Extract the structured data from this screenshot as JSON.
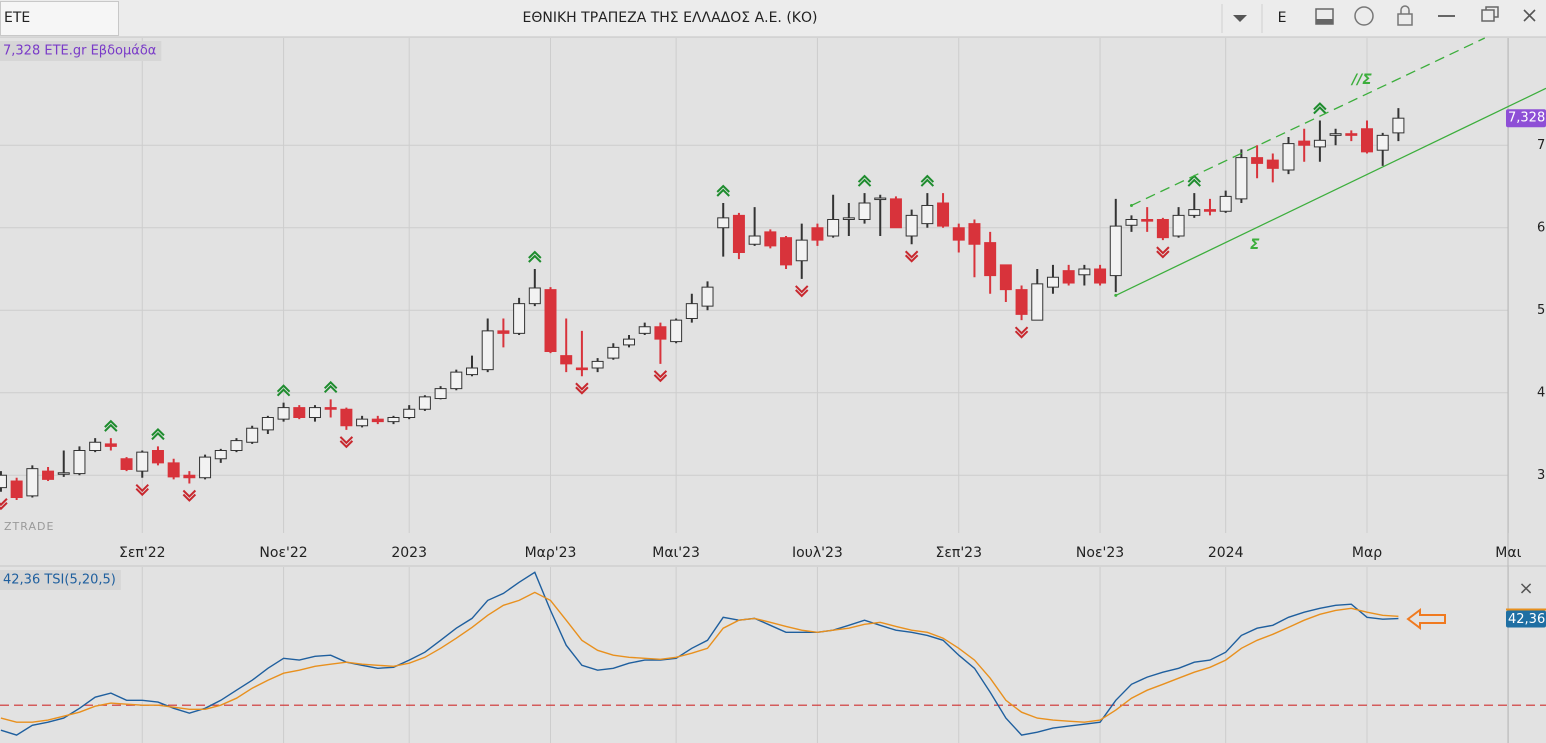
{
  "header": {
    "symbol": "ETE",
    "title": "ΕΘΝΙΚΗ ΤΡΑΠΕΖΑ ΤΗΣ ΕΛΛΑΔΟΣ Α.Ε. (ΚΟ)",
    "mode": "E"
  },
  "watermark": "ZTRADE",
  "panel_close": "×",
  "chart_data": [
    {
      "type": "candlestick",
      "legend": "7,328 ETE.gr Εβδομάδα",
      "last_value": {
        "value": 7.328,
        "label": "7,328"
      },
      "up_color": "#f2f2f2",
      "down_color": "#d8333b",
      "edge_color": "#333333",
      "xlim": [
        -0.06,
        98.4
      ],
      "xticks": [
        {
          "value": 9,
          "label": "Σεπ'22"
        },
        {
          "value": 18,
          "label": "Νοε'22"
        },
        {
          "value": 26,
          "label": "2023"
        },
        {
          "value": 35,
          "label": "Μαρ'23"
        },
        {
          "value": 43,
          "label": "Μαι'23"
        },
        {
          "value": 52,
          "label": "Ιουλ'23"
        },
        {
          "value": 61,
          "label": "Σεπ'23"
        },
        {
          "value": 70,
          "label": "Νοε'23"
        },
        {
          "value": 78,
          "label": "2024"
        },
        {
          "value": 87,
          "label": "Μαρ"
        },
        {
          "value": 96,
          "label": "Μαι"
        }
      ],
      "ylim": [
        2.3,
        8.3
      ],
      "yticks": [
        3,
        4,
        5,
        6,
        7
      ],
      "grid": true,
      "open": [
        2.85,
        2.93,
        2.75,
        3.05,
        3.02,
        3.02,
        3.3,
        3.38,
        3.2,
        3.05,
        3.3,
        3.15,
        3.0,
        2.97,
        3.2,
        3.3,
        3.4,
        3.55,
        3.68,
        3.82,
        3.7,
        3.82,
        3.8,
        3.6,
        3.68,
        3.65,
        3.7,
        3.8,
        3.93,
        4.05,
        4.22,
        4.28,
        4.75,
        4.72,
        5.08,
        5.25,
        4.45,
        4.3,
        4.3,
        4.42,
        4.58,
        4.72,
        4.8,
        4.62,
        4.9,
        5.05,
        6.0,
        6.15,
        5.8,
        5.95,
        5.88,
        5.6,
        6.0,
        5.9,
        6.1,
        6.1,
        6.35,
        6.35,
        5.9,
        6.05,
        6.3,
        6.0,
        6.05,
        5.82,
        5.55,
        5.25,
        4.88,
        5.28,
        5.48,
        5.43,
        5.5,
        5.42,
        6.03,
        6.1,
        6.1,
        5.9,
        6.15,
        6.22,
        6.2,
        6.35,
        6.85,
        6.82,
        6.7,
        7.05,
        6.98,
        7.12,
        7.14,
        7.2,
        6.94,
        7.15
      ],
      "high": [
        3.05,
        2.97,
        3.12,
        3.1,
        3.3,
        3.35,
        3.45,
        3.45,
        3.22,
        3.3,
        3.35,
        3.2,
        3.05,
        3.25,
        3.32,
        3.45,
        3.6,
        3.72,
        3.88,
        3.85,
        3.85,
        3.92,
        3.82,
        3.72,
        3.72,
        3.72,
        3.85,
        3.97,
        4.08,
        4.28,
        4.45,
        4.9,
        4.9,
        5.15,
        5.5,
        5.28,
        4.9,
        4.75,
        4.42,
        4.6,
        4.7,
        4.85,
        4.85,
        4.9,
        5.2,
        5.35,
        6.3,
        6.18,
        6.25,
        5.98,
        5.9,
        6.05,
        6.05,
        6.4,
        6.3,
        6.42,
        6.4,
        6.38,
        6.22,
        6.42,
        6.42,
        6.05,
        6.1,
        5.95,
        5.55,
        5.3,
        5.5,
        5.55,
        5.55,
        5.55,
        5.55,
        6.35,
        6.15,
        6.25,
        6.12,
        6.25,
        6.42,
        6.35,
        6.45,
        6.95,
        7.0,
        6.9,
        7.1,
        7.2,
        7.3,
        7.2,
        7.18,
        7.3,
        7.15,
        7.45
      ],
      "low": [
        2.8,
        2.7,
        2.73,
        2.93,
        2.98,
        3.0,
        3.28,
        3.3,
        3.05,
        2.97,
        3.12,
        2.95,
        2.9,
        2.95,
        3.15,
        3.28,
        3.38,
        3.5,
        3.65,
        3.68,
        3.65,
        3.7,
        3.55,
        3.58,
        3.62,
        3.62,
        3.68,
        3.78,
        3.92,
        4.03,
        4.2,
        4.25,
        4.55,
        4.7,
        5.05,
        4.48,
        4.25,
        4.2,
        4.25,
        4.4,
        4.55,
        4.7,
        4.35,
        4.6,
        4.85,
        5.0,
        5.65,
        5.62,
        5.78,
        5.75,
        5.5,
        5.38,
        5.78,
        5.88,
        5.9,
        6.05,
        5.9,
        6.0,
        5.8,
        6.0,
        6.0,
        5.7,
        5.4,
        5.2,
        5.1,
        4.88,
        4.88,
        5.2,
        5.3,
        5.3,
        5.3,
        5.22,
        5.95,
        5.95,
        5.85,
        5.88,
        6.12,
        6.15,
        6.18,
        6.3,
        6.6,
        6.55,
        6.65,
        6.8,
        6.8,
        7.0,
        7.05,
        6.9,
        6.75,
        7.05
      ],
      "close": [
        3.0,
        2.73,
        3.08,
        2.95,
        3.03,
        3.3,
        3.4,
        3.35,
        3.07,
        3.28,
        3.15,
        2.98,
        2.97,
        3.22,
        3.3,
        3.42,
        3.57,
        3.7,
        3.82,
        3.7,
        3.82,
        3.8,
        3.6,
        3.68,
        3.65,
        3.7,
        3.8,
        3.95,
        4.05,
        4.25,
        4.3,
        4.75,
        4.72,
        5.08,
        5.27,
        4.5,
        4.35,
        4.28,
        4.38,
        4.55,
        4.65,
        4.8,
        4.65,
        4.88,
        5.08,
        5.28,
        6.12,
        5.7,
        5.9,
        5.78,
        5.55,
        5.85,
        5.85,
        6.1,
        6.12,
        6.3,
        6.36,
        6.0,
        6.15,
        6.27,
        6.02,
        5.85,
        5.8,
        5.42,
        5.25,
        4.95,
        5.32,
        5.4,
        5.33,
        5.5,
        5.33,
        6.02,
        6.1,
        6.08,
        5.88,
        6.15,
        6.22,
        6.2,
        6.38,
        6.85,
        6.78,
        6.72,
        7.02,
        7.0,
        7.06,
        7.14,
        7.12,
        6.92,
        7.12,
        7.328
      ],
      "buy_signals": [
        7,
        10,
        18,
        21,
        34,
        46,
        55,
        59,
        76,
        84
      ],
      "sell_signals": [
        0,
        9,
        12,
        22,
        37,
        42,
        51,
        58,
        65,
        74
      ],
      "trendlines": [
        {
          "style": "solid",
          "color": "#3cae3c",
          "label": "Σ",
          "points": [
            [
              71,
              5.18
            ],
            [
              98.4,
              7.69
            ]
          ]
        },
        {
          "style": "dashed",
          "color": "#3cae3c",
          "label": "//Σ",
          "points": [
            [
              72,
              6.27
            ],
            [
              94.5,
              8.3
            ]
          ]
        }
      ]
    },
    {
      "type": "line",
      "legend": "42,36 TSI(5,20,5)",
      "last_value": {
        "value": 42.36,
        "label": "42,36"
      },
      "xlim": [
        -0.06,
        98.4
      ],
      "ylim": [
        -17,
        67
      ],
      "level": 0,
      "level_color": "#d03030",
      "series": [
        {
          "color": "#1f5f9e",
          "values": [
            -12.2,
            -14.6,
            -9.8,
            -8.3,
            -6.3,
            -1.5,
            3.9,
            5.9,
            2.4,
            2.4,
            1.5,
            -1.5,
            -3.9,
            -1.5,
            2.4,
            7.3,
            12.2,
            18.0,
            22.9,
            22.0,
            23.9,
            24.4,
            21.0,
            19.5,
            18.0,
            18.5,
            22.0,
            25.9,
            31.7,
            37.6,
            42.4,
            51.2,
            54.6,
            60.0,
            64.9,
            46.3,
            29.3,
            19.5,
            17.1,
            18.0,
            20.5,
            22.0,
            22.0,
            22.9,
            27.8,
            31.7,
            42.9,
            41.5,
            42.4,
            39.0,
            35.6,
            35.6,
            35.6,
            36.6,
            39.0,
            41.5,
            39.0,
            36.6,
            35.6,
            34.1,
            31.7,
            24.4,
            18.0,
            6.3,
            -6.3,
            -14.6,
            -13.2,
            -11.2,
            -10.2,
            -9.3,
            -8.3,
            2.4,
            10.2,
            13.7,
            16.1,
            18.0,
            21.0,
            22.0,
            25.9,
            34.1,
            37.6,
            39.0,
            42.9,
            45.4,
            47.3,
            48.8,
            49.3,
            42.9,
            42.0,
            42.36
          ]
        },
        {
          "color": "#e8901e",
          "values": [
            -6.3,
            -8.3,
            -8.3,
            -7.3,
            -5.4,
            -3.4,
            -0.5,
            1.0,
            0.5,
            0,
            0,
            -1.0,
            -2.0,
            -2.0,
            0,
            3.4,
            8.3,
            12.2,
            15.6,
            17.1,
            19.0,
            20.0,
            21.0,
            20.0,
            19.5,
            19.0,
            20.5,
            23.4,
            27.8,
            32.7,
            38.0,
            43.9,
            48.8,
            51.2,
            55.1,
            51.2,
            41.5,
            31.7,
            26.8,
            24.4,
            23.4,
            22.9,
            22.4,
            23.4,
            25.4,
            27.8,
            37.6,
            41.5,
            42.4,
            40.5,
            38.5,
            36.6,
            35.6,
            36.6,
            37.6,
            39.5,
            40.5,
            38.5,
            36.6,
            35.6,
            32.7,
            27.8,
            22.0,
            13.2,
            2.4,
            -3.4,
            -6.3,
            -7.3,
            -7.8,
            -8.3,
            -7.3,
            -2.4,
            3.4,
            7.3,
            10.2,
            13.2,
            16.1,
            18.5,
            22.0,
            27.8,
            31.7,
            34.6,
            38.0,
            41.5,
            44.4,
            46.3,
            47.3,
            45.4,
            43.9,
            43.4
          ]
        }
      ]
    }
  ]
}
